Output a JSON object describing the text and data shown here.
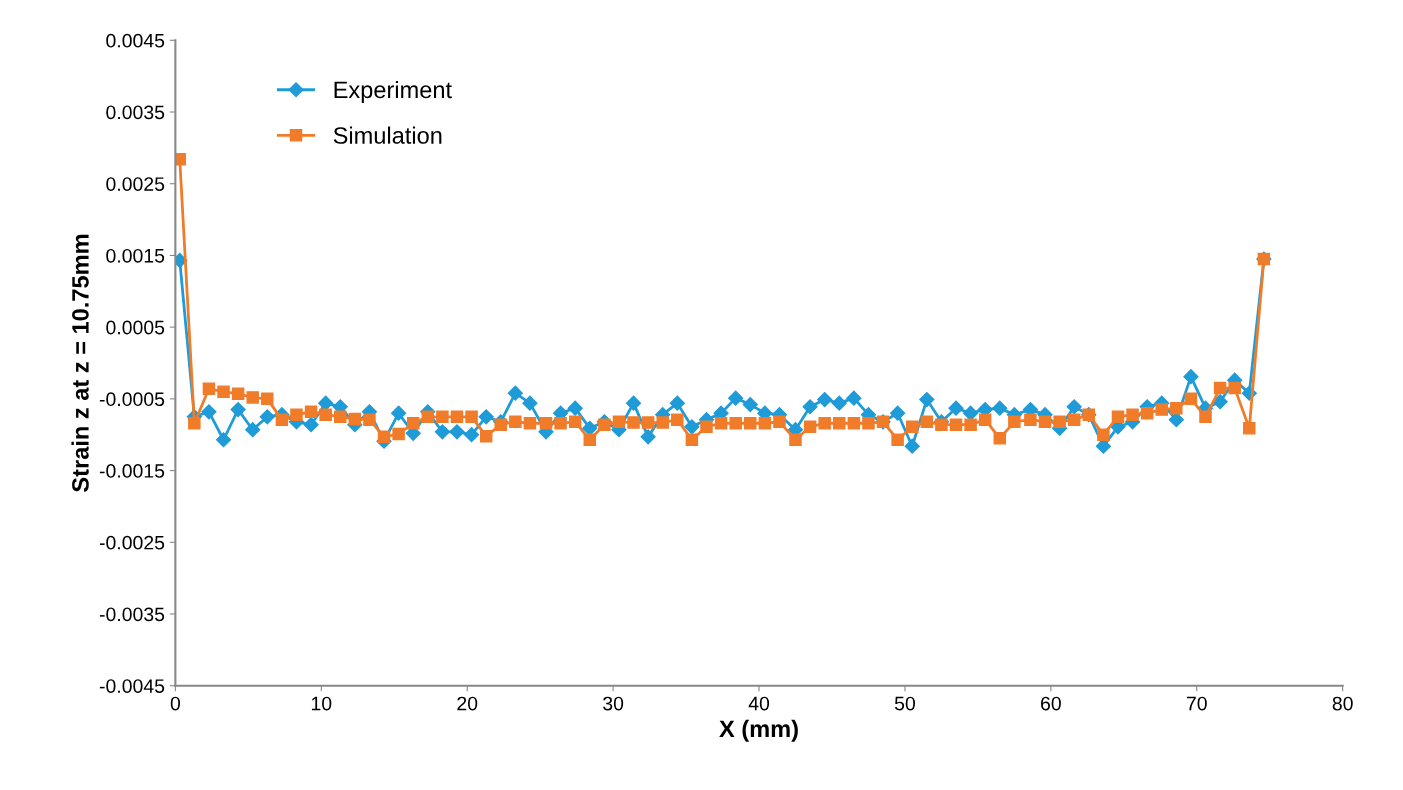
{
  "chart_data": {
    "type": "line",
    "xlabel": "X (mm)",
    "ylabel": "Strain z at z = 10.75mm",
    "x": [
      0.3,
      1.3,
      2.3,
      3.3,
      4.3,
      5.3,
      6.3,
      7.3,
      8.3,
      9.3,
      10.3,
      11.3,
      12.3,
      13.3,
      14.3,
      15.3,
      16.3,
      17.3,
      18.3,
      19.3,
      20.3,
      21.3,
      22.3,
      23.3,
      24.3,
      25.4,
      26.4,
      27.4,
      28.4,
      29.4,
      30.4,
      31.4,
      32.4,
      33.4,
      34.4,
      35.4,
      36.4,
      37.4,
      38.4,
      39.4,
      40.4,
      41.4,
      42.5,
      43.5,
      44.5,
      45.5,
      46.5,
      47.5,
      48.5,
      49.5,
      50.5,
      51.5,
      52.5,
      53.5,
      54.5,
      55.5,
      56.5,
      57.5,
      58.6,
      59.6,
      60.6,
      61.6,
      62.6,
      63.6,
      64.6,
      65.6,
      66.6,
      67.6,
      68.6,
      69.6,
      70.6,
      71.6,
      72.6,
      73.6,
      74.6
    ],
    "series": [
      {
        "name": "Experiment",
        "color": "#1f9bd7",
        "marker": "diamond",
        "values": [
          0.00143,
          -0.00075,
          -0.00068,
          -0.00107,
          -0.00065,
          -0.00093,
          -0.00075,
          -0.00072,
          -0.00082,
          -0.00086,
          -0.00056,
          -0.00061,
          -0.00086,
          -0.00068,
          -0.00109,
          -0.0007,
          -0.00098,
          -0.00068,
          -0.00096,
          -0.00096,
          -0.001,
          -0.00075,
          -0.00082,
          -0.00042,
          -0.00056,
          -0.00096,
          -0.0007,
          -0.00063,
          -0.00091,
          -0.00082,
          -0.00093,
          -0.00056,
          -0.00103,
          -0.00072,
          -0.00056,
          -0.00089,
          -0.00079,
          -0.0007,
          -0.00049,
          -0.00058,
          -0.0007,
          -0.00072,
          -0.00093,
          -0.00061,
          -0.00051,
          -0.00056,
          -0.00049,
          -0.00072,
          -0.00082,
          -0.0007,
          -0.00116,
          -0.00051,
          -0.00082,
          -0.00063,
          -0.0007,
          -0.00065,
          -0.00063,
          -0.00072,
          -0.00065,
          -0.00072,
          -0.00091,
          -0.00061,
          -0.00072,
          -0.00116,
          -0.00089,
          -0.00082,
          -0.00061,
          -0.00056,
          -0.00079,
          -0.00019,
          -0.00063,
          -0.00054,
          -0.00024,
          -0.00042,
          0.00145
        ]
      },
      {
        "name": "Simulation",
        "color": "#f07c2a",
        "marker": "square",
        "values": [
          0.00284,
          -0.00084,
          -0.00036,
          -0.0004,
          -0.00043,
          -0.00048,
          -0.0005,
          -0.00079,
          -0.00072,
          -0.00068,
          -0.00072,
          -0.00075,
          -0.00078,
          -0.00079,
          -0.00103,
          -0.00099,
          -0.00084,
          -0.00075,
          -0.00075,
          -0.00075,
          -0.00075,
          -0.00102,
          -0.00086,
          -0.00082,
          -0.00084,
          -0.00084,
          -0.00084,
          -0.00082,
          -0.00107,
          -0.00086,
          -0.00082,
          -0.00083,
          -0.00083,
          -0.00083,
          -0.00079,
          -0.00107,
          -0.00089,
          -0.00084,
          -0.00084,
          -0.00084,
          -0.00084,
          -0.00082,
          -0.00107,
          -0.00089,
          -0.00084,
          -0.00084,
          -0.00084,
          -0.00084,
          -0.00082,
          -0.00107,
          -0.00089,
          -0.00082,
          -0.00086,
          -0.00086,
          -0.00086,
          -0.00079,
          -0.00105,
          -0.00082,
          -0.00079,
          -0.00082,
          -0.00082,
          -0.00079,
          -0.00072,
          -0.001,
          -0.00075,
          -0.00072,
          -0.0007,
          -0.00065,
          -0.00063,
          -0.0005,
          -0.00075,
          -0.00035,
          -0.00035,
          -0.00091,
          0.00145
        ]
      }
    ],
    "xlim": [
      0,
      80
    ],
    "xticks": [
      0,
      10,
      20,
      30,
      40,
      50,
      60,
      70,
      80
    ],
    "ylim": [
      -0.0045,
      0.0045
    ],
    "yticks": [
      -0.0045,
      -0.0035,
      -0.0025,
      -0.0015,
      -0.0005,
      0.0005,
      0.0015,
      0.0025,
      0.0035,
      0.0045
    ],
    "legend": "top left",
    "grid": false,
    "line_style": "solid"
  }
}
